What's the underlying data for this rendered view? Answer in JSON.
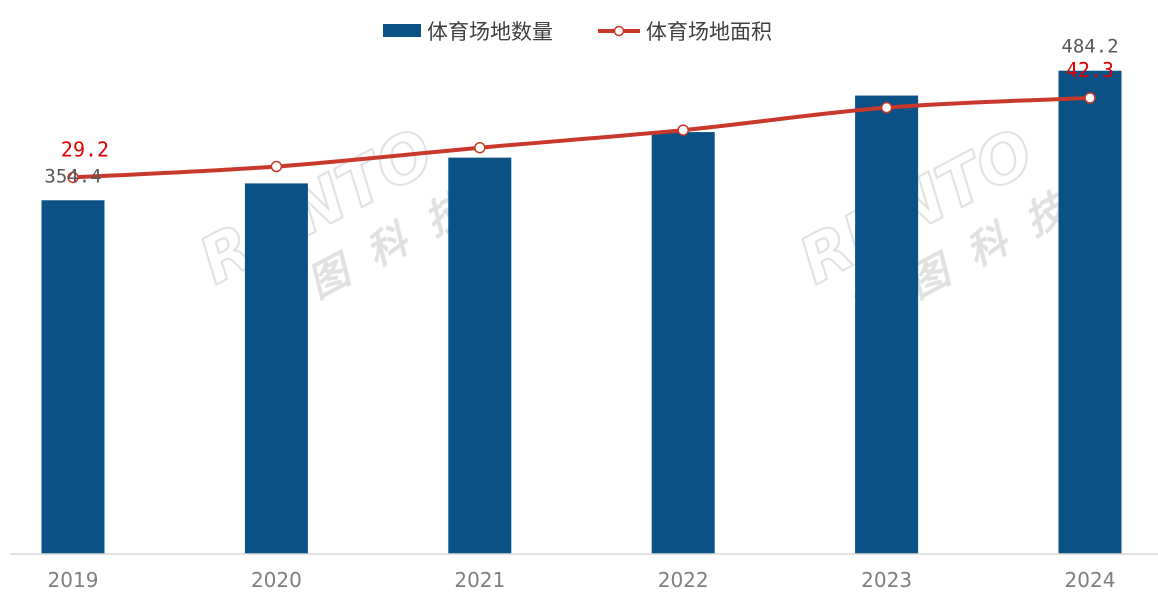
{
  "chart_data": {
    "type": "bar",
    "categories": [
      "2019",
      "2020",
      "2021",
      "2022",
      "2023",
      "2024"
    ],
    "series": [
      {
        "name": "体育场地数量",
        "type": "bar",
        "values": [
          354.4,
          371.3,
          397.1,
          422.7,
          459.3,
          484.2
        ],
        "labels": [
          "354.4",
          "",
          "",
          "",
          "",
          "484.2"
        ],
        "color": "#0a5286"
      },
      {
        "name": "体育场地面积",
        "type": "line",
        "values": [
          29.2,
          31.0,
          34.1,
          37.0,
          40.7,
          42.3
        ],
        "labels": [
          "29.2",
          "",
          "",
          "",
          "",
          "42.3"
        ],
        "color": "#c8382b",
        "label_color": "#e00000"
      }
    ],
    "bar_ylim": [
      0,
      535
    ],
    "line_ylim": [
      -20,
      50
    ],
    "legend": "top-center",
    "grid": false
  },
  "watermark": {
    "brand": "RUNTO",
    "name": "洛图科技"
  }
}
